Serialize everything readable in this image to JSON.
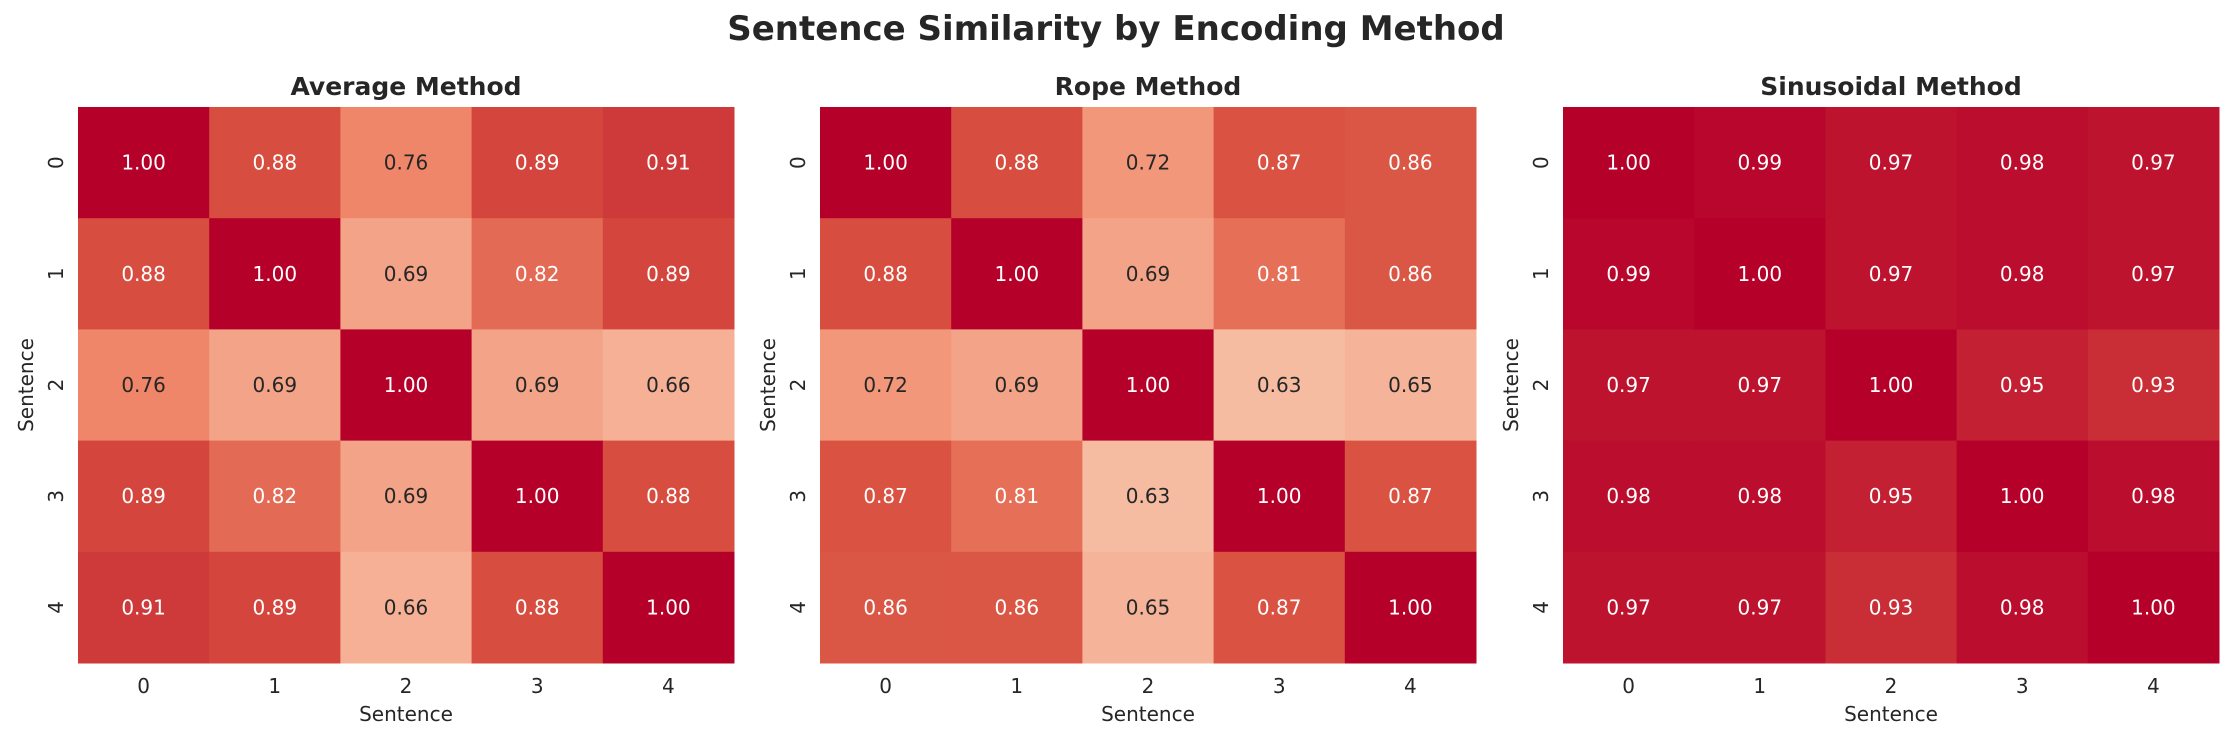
{
  "figure": {
    "title": "Sentence Similarity by Encoding Method"
  },
  "colors": {
    "low": "#f6f7f7",
    "high": "#b5002a",
    "text_dark": "#262626",
    "text_light": "#ffffff"
  },
  "chart_data": [
    {
      "type": "heatmap",
      "title": "Average Method",
      "xlabel": "Sentence",
      "ylabel": "Sentence",
      "x_tick_labels": [
        "0",
        "1",
        "2",
        "3",
        "4"
      ],
      "y_tick_labels": [
        "0",
        "1",
        "2",
        "3",
        "4"
      ],
      "color_scale": [
        0.5,
        1.0
      ],
      "values": [
        [
          1.0,
          0.88,
          0.76,
          0.89,
          0.91
        ],
        [
          0.88,
          1.0,
          0.69,
          0.82,
          0.89
        ],
        [
          0.76,
          0.69,
          1.0,
          0.69,
          0.66
        ],
        [
          0.89,
          0.82,
          0.69,
          1.0,
          0.88
        ],
        [
          0.91,
          0.89,
          0.66,
          0.88,
          1.0
        ]
      ],
      "value_labels": [
        [
          "1.00",
          "0.88",
          "0.76",
          "0.89",
          "0.91"
        ],
        [
          "0.88",
          "1.00",
          "0.69",
          "0.82",
          "0.89"
        ],
        [
          "0.76",
          "0.69",
          "1.00",
          "0.69",
          "0.66"
        ],
        [
          "0.89",
          "0.82",
          "0.69",
          "1.00",
          "0.88"
        ],
        [
          "0.91",
          "0.89",
          "0.66",
          "0.88",
          "1.00"
        ]
      ]
    },
    {
      "type": "heatmap",
      "title": "Rope Method",
      "xlabel": "Sentence",
      "ylabel": "Sentence",
      "x_tick_labels": [
        "0",
        "1",
        "2",
        "3",
        "4"
      ],
      "y_tick_labels": [
        "0",
        "1",
        "2",
        "3",
        "4"
      ],
      "color_scale": [
        0.5,
        1.0
      ],
      "values": [
        [
          1.0,
          0.88,
          0.72,
          0.87,
          0.86
        ],
        [
          0.88,
          1.0,
          0.69,
          0.81,
          0.86
        ],
        [
          0.72,
          0.69,
          1.0,
          0.63,
          0.65
        ],
        [
          0.87,
          0.81,
          0.63,
          1.0,
          0.87
        ],
        [
          0.86,
          0.86,
          0.65,
          0.87,
          1.0
        ]
      ],
      "value_labels": [
        [
          "1.00",
          "0.88",
          "0.72",
          "0.87",
          "0.86"
        ],
        [
          "0.88",
          "1.00",
          "0.69",
          "0.81",
          "0.86"
        ],
        [
          "0.72",
          "0.69",
          "1.00",
          "0.63",
          "0.65"
        ],
        [
          "0.87",
          "0.81",
          "0.63",
          "1.00",
          "0.87"
        ],
        [
          "0.86",
          "0.86",
          "0.65",
          "0.87",
          "1.00"
        ]
      ]
    },
    {
      "type": "heatmap",
      "title": "Sinusoidal Method",
      "xlabel": "Sentence",
      "ylabel": "Sentence",
      "x_tick_labels": [
        "0",
        "1",
        "2",
        "3",
        "4"
      ],
      "y_tick_labels": [
        "0",
        "1",
        "2",
        "3",
        "4"
      ],
      "color_scale": [
        0.5,
        1.0
      ],
      "values": [
        [
          1.0,
          0.99,
          0.97,
          0.98,
          0.97
        ],
        [
          0.99,
          1.0,
          0.97,
          0.98,
          0.97
        ],
        [
          0.97,
          0.97,
          1.0,
          0.95,
          0.93
        ],
        [
          0.98,
          0.98,
          0.95,
          1.0,
          0.98
        ],
        [
          0.97,
          0.97,
          0.93,
          0.98,
          1.0
        ]
      ],
      "value_labels": [
        [
          "1.00",
          "0.99",
          "0.97",
          "0.98",
          "0.97"
        ],
        [
          "0.99",
          "1.00",
          "0.97",
          "0.98",
          "0.97"
        ],
        [
          "0.97",
          "0.97",
          "1.00",
          "0.95",
          "0.93"
        ],
        [
          "0.98",
          "0.98",
          "0.95",
          "1.00",
          "0.98"
        ],
        [
          "0.97",
          "0.97",
          "0.93",
          "0.98",
          "1.00"
        ]
      ]
    }
  ]
}
